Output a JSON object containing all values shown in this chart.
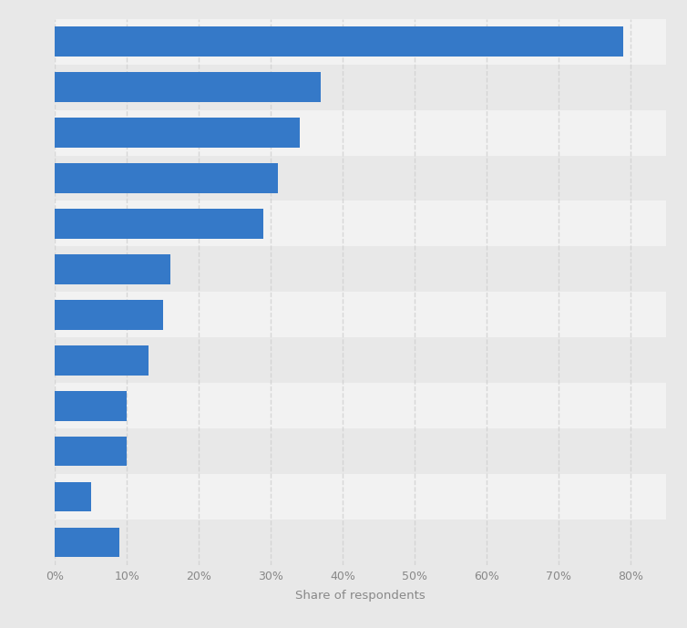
{
  "values": [
    79,
    37,
    34,
    31,
    29,
    16,
    15,
    13,
    10,
    10,
    5,
    9
  ],
  "bar_color": "#3579c8",
  "outer_background": "#e8e8e8",
  "plot_background_light": "#f2f2f2",
  "plot_background_dark": "#e8e8e8",
  "xlabel": "Share of respondents",
  "xlim": [
    0,
    85
  ],
  "xticks": [
    0,
    10,
    20,
    30,
    40,
    50,
    60,
    70,
    80
  ],
  "xlabel_fontsize": 9.5,
  "xtick_fontsize": 9,
  "bar_height": 0.65,
  "grid_color": "#cccccc",
  "grid_linewidth": 1.0,
  "tick_label_color": "#888888"
}
